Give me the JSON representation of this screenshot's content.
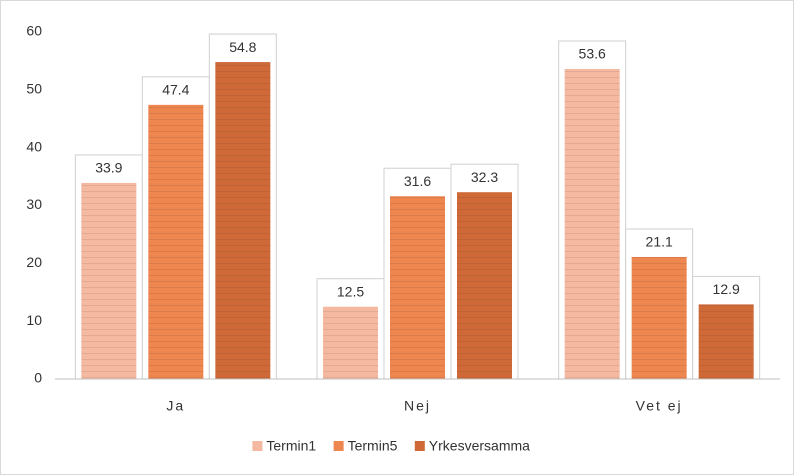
{
  "chart_data": {
    "type": "bar",
    "categories": [
      "Ja",
      "Nej",
      "Vet ej"
    ],
    "series": [
      {
        "name": "Termin1",
        "color": "#f5b8a0",
        "values": [
          33.9,
          12.5,
          53.6
        ]
      },
      {
        "name": "Termin5",
        "color": "#ee8650",
        "values": [
          47.4,
          31.6,
          21.1
        ]
      },
      {
        "name": "Yrkesversamma",
        "color": "#cf6a38",
        "values": [
          54.8,
          32.3,
          12.9
        ]
      }
    ],
    "ylim": [
      0,
      60
    ],
    "yticks": [
      0,
      10,
      20,
      30,
      40,
      50,
      60
    ],
    "grid": false
  }
}
